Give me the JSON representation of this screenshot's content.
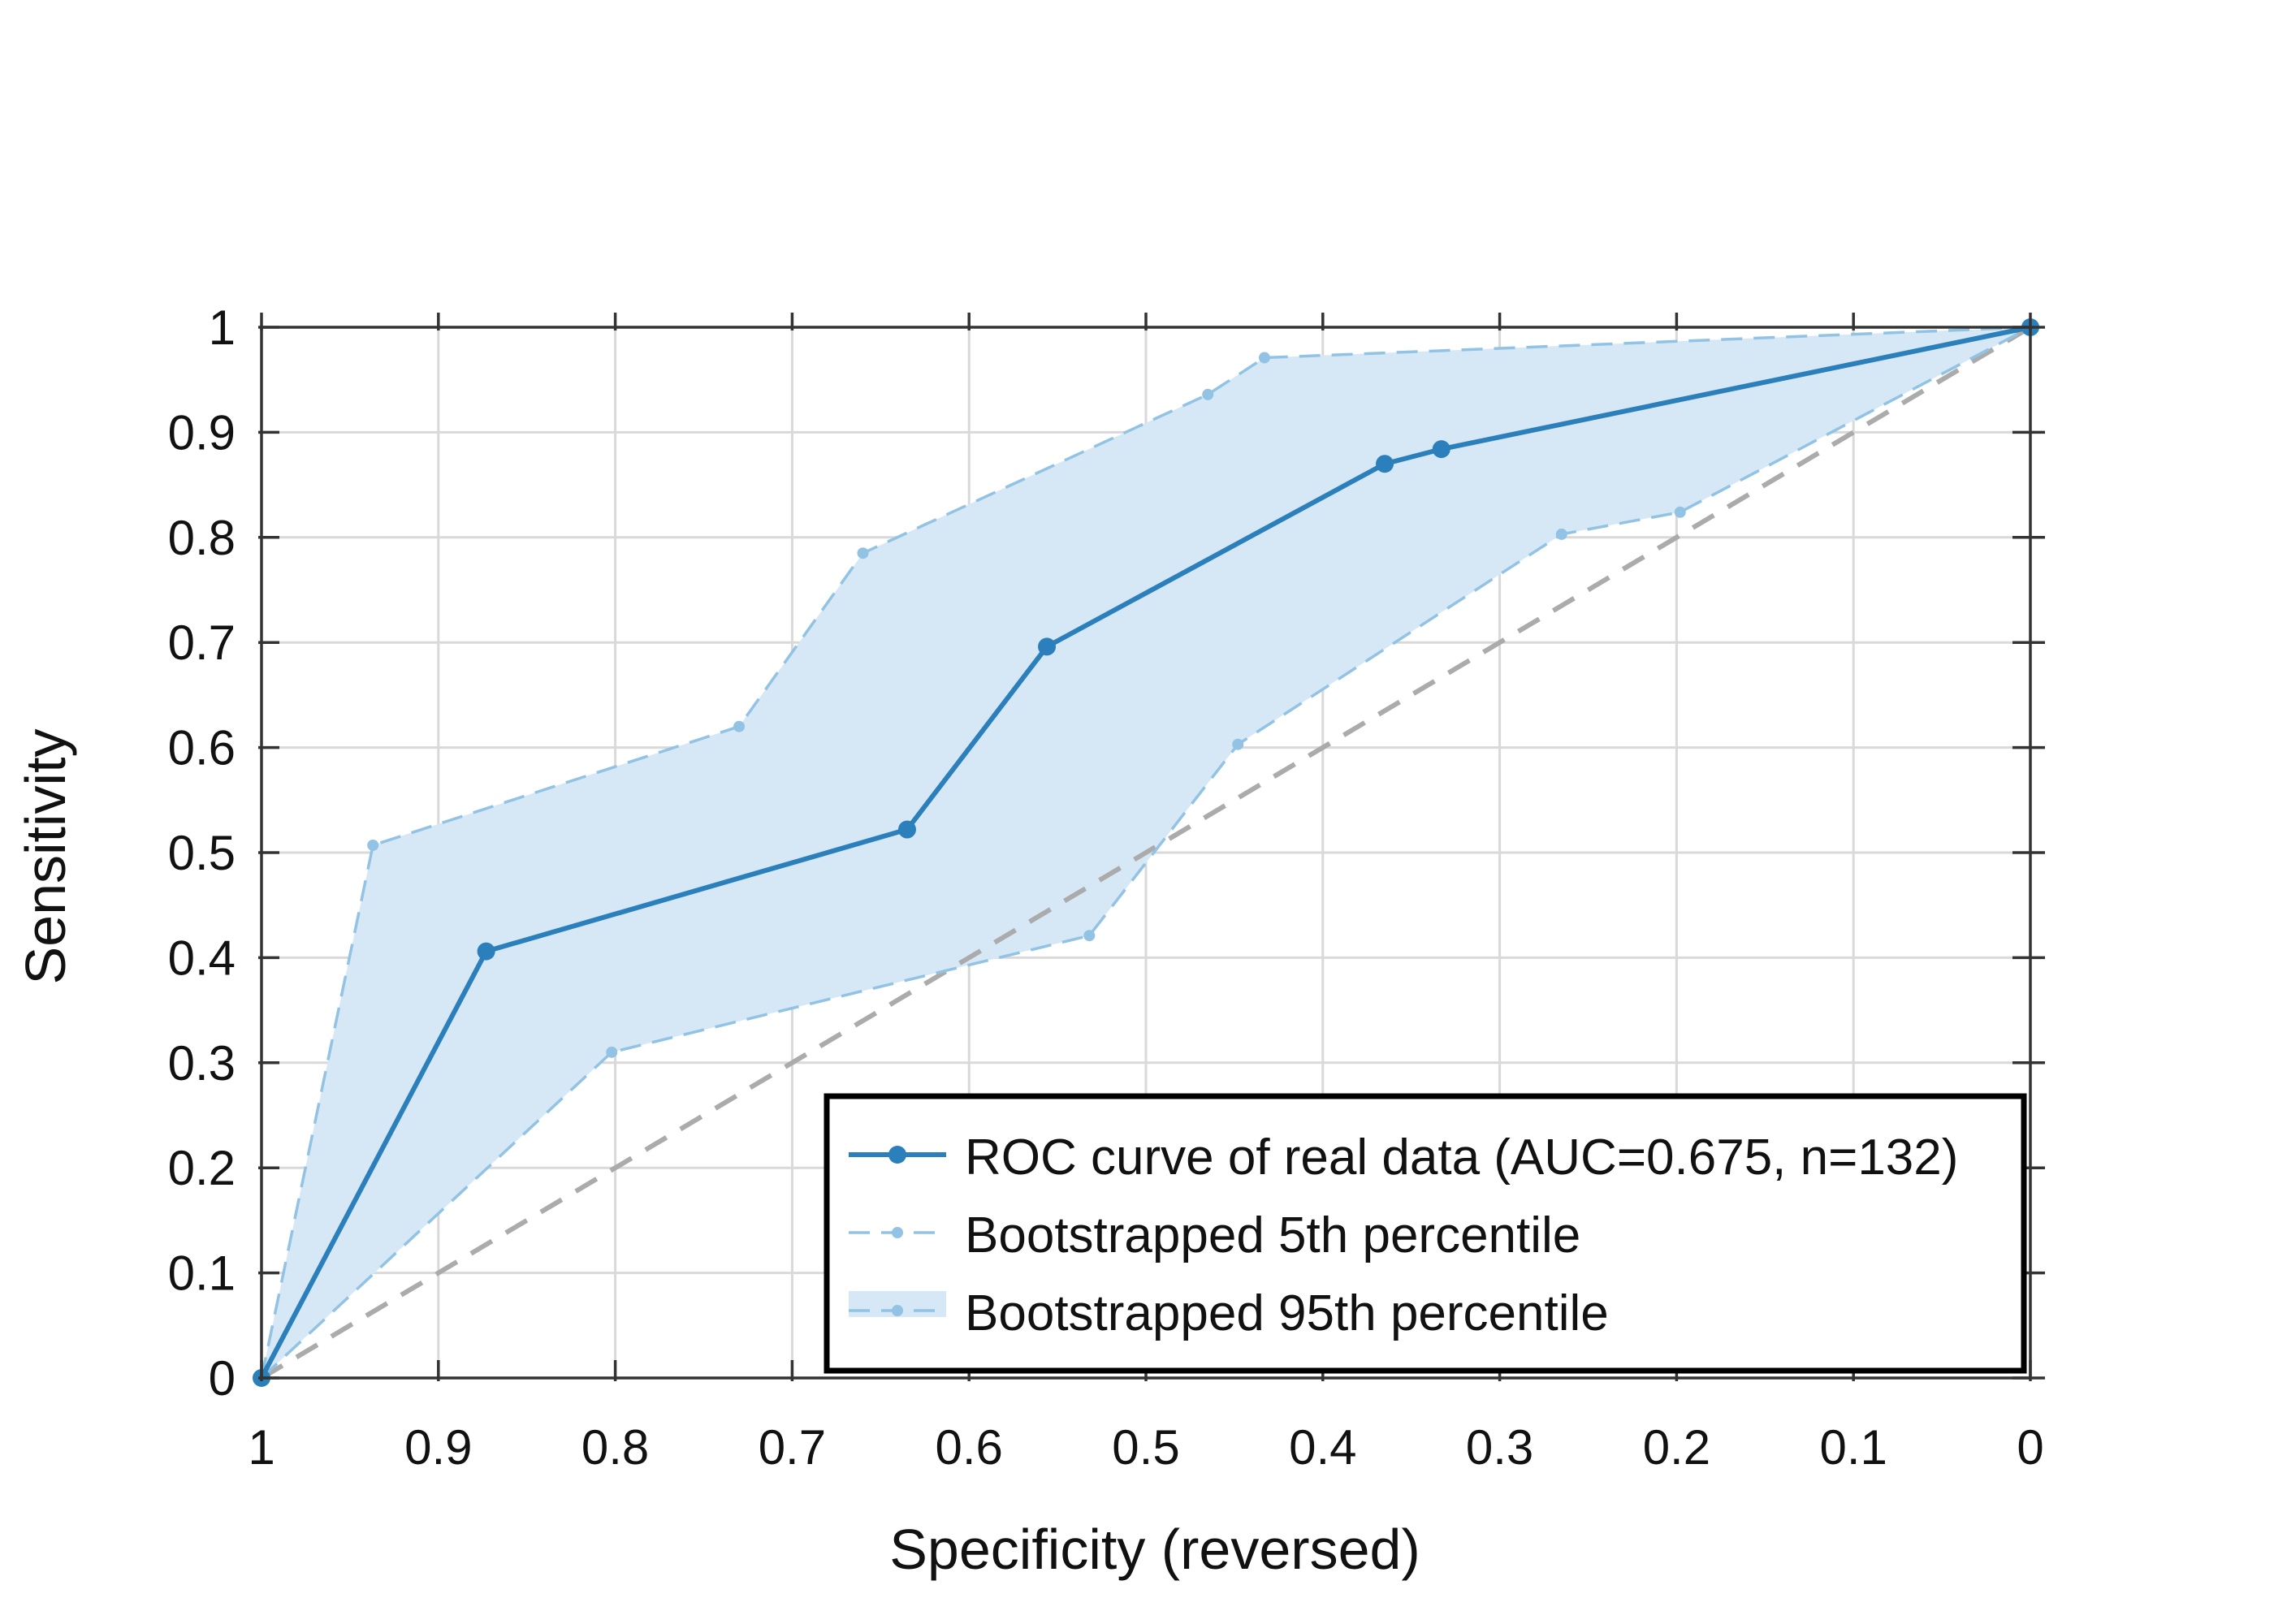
{
  "chart_data": {
    "type": "line",
    "title": "",
    "xlabel": "Specificity (reversed)",
    "ylabel": "Sensitivity",
    "x_reversed": true,
    "xlim": [
      1,
      0
    ],
    "ylim": [
      0,
      1
    ],
    "xticks": [
      1,
      0.9,
      0.8,
      0.7,
      0.6,
      0.5,
      0.4,
      0.3,
      0.2,
      0.1,
      0
    ],
    "xtick_labels": [
      "1",
      "0.9",
      "0.8",
      "0.7",
      "0.6",
      "0.5",
      "0.4",
      "0.3",
      "0.2",
      "0.1",
      "0"
    ],
    "yticks": [
      0,
      0.1,
      0.2,
      0.3,
      0.4,
      0.5,
      0.6,
      0.7,
      0.8,
      0.9,
      1
    ],
    "ytick_labels": [
      "0",
      "0.1",
      "0.2",
      "0.3",
      "0.4",
      "0.5",
      "0.6",
      "0.7",
      "0.8",
      "0.9",
      "1"
    ],
    "grid": true,
    "legend_position": "bottom-right",
    "diagonal_reference": true,
    "series": [
      {
        "name": "ROC curve of real data (AUC=0.675, n=132)",
        "color": "#2b7fbb",
        "style": "solid-marker",
        "x": [
          1.0,
          0.873,
          0.635,
          0.556,
          0.365,
          0.333,
          0.0
        ],
        "y": [
          0.0,
          0.406,
          0.522,
          0.696,
          0.87,
          0.884,
          1.0
        ]
      },
      {
        "name": "Bootstrapped 5th percentile",
        "color": "#92c3e4",
        "style": "dashed-marker",
        "x": [
          1.0,
          0.802,
          0.532,
          0.448,
          0.265,
          0.198,
          0.0
        ],
        "y": [
          0.0,
          0.31,
          0.421,
          0.603,
          0.803,
          0.824,
          1.0
        ]
      },
      {
        "name": "Bootstrapped 95th percentile",
        "color": "#92c3e4",
        "fill_color": "#d6e8f6",
        "style": "dashed-marker-fill",
        "x": [
          1.0,
          0.937,
          0.73,
          0.66,
          0.465,
          0.433,
          0.0
        ],
        "y": [
          0.0,
          0.507,
          0.62,
          0.785,
          0.936,
          0.971,
          1.0
        ]
      }
    ]
  }
}
